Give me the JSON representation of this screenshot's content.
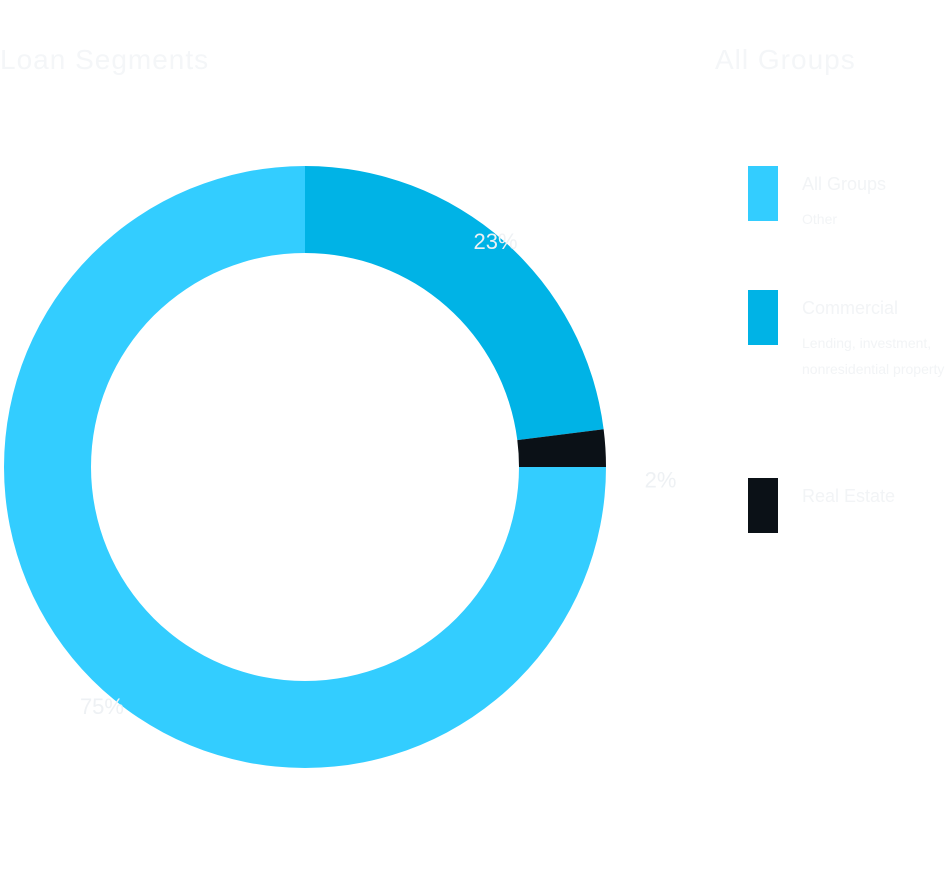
{
  "header": {
    "left_title": "Loan Segments",
    "right_title": "All Groups"
  },
  "colors": {
    "light_blue": "#33cdff",
    "mid_blue": "#00b3e6",
    "black": "#0b1117"
  },
  "chart_data": {
    "type": "pie",
    "donut": true,
    "categories": [
      "All Groups",
      "Commercial",
      "Real Estate"
    ],
    "values": [
      75,
      23,
      2
    ],
    "value_labels": [
      "75%",
      "23%",
      "2%"
    ],
    "legend": [
      {
        "title": "All Groups",
        "description": "Other"
      },
      {
        "title": "Commercial",
        "description": "Lending, investment, nonresidential property"
      },
      {
        "title": "Real Estate",
        "description": ""
      }
    ],
    "title": "",
    "legend_placement": "right"
  }
}
